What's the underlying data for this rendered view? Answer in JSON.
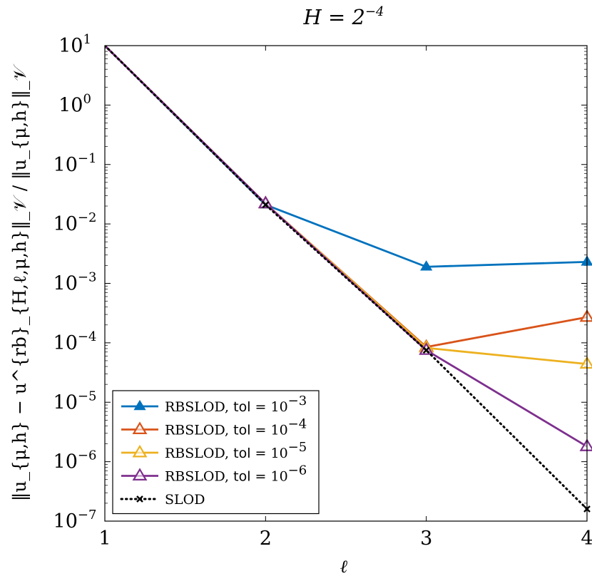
{
  "chart_data": {
    "type": "line",
    "title": "H = 2^{-4}",
    "title_base": "H = 2",
    "title_exp": "−4",
    "xlabel": "ℓ",
    "ylabel": "‖u_{μ,h} − u^{rb}_{H,ℓ,μ,h}‖_𝒱 / ‖u_{μ,h}‖_𝒱",
    "xlim": [
      1,
      4
    ],
    "ylim": [
      1e-07,
      10
    ],
    "yscale": "log",
    "grid": false,
    "legend_position": "bottom-left",
    "x_ticks": [
      "1",
      "2",
      "3",
      "4"
    ],
    "y_ticks": [
      {
        "base": "10",
        "exp": "−7",
        "value": 1e-07
      },
      {
        "base": "10",
        "exp": "−6",
        "value": 1e-06
      },
      {
        "base": "10",
        "exp": "−5",
        "value": 1e-05
      },
      {
        "base": "10",
        "exp": "−4",
        "value": 0.0001
      },
      {
        "base": "10",
        "exp": "−3",
        "value": 0.001
      },
      {
        "base": "10",
        "exp": "−2",
        "value": 0.01
      },
      {
        "base": "10",
        "exp": "−1",
        "value": 0.1
      },
      {
        "base": "10",
        "exp": "0",
        "value": 1
      },
      {
        "base": "10",
        "exp": "1",
        "value": 10
      }
    ],
    "series": [
      {
        "name": "RBSLOD, tol = 10^{-3}",
        "label_prefix": "RBSLOD, ",
        "label_tol": "tol",
        "label_eq": " = 10",
        "label_exp": "−3",
        "color": "#0072bd",
        "marker": "triangle-filled",
        "dash": "solid",
        "x": [
          1,
          2,
          3,
          4
        ],
        "y": [
          10,
          0.021,
          0.0019,
          0.0023
        ]
      },
      {
        "name": "RBSLOD, tol = 10^{-4}",
        "label_prefix": "RBSLOD, ",
        "label_tol": "tol",
        "label_eq": " = 10",
        "label_exp": "−4",
        "color": "#d95319",
        "marker": "triangle-open",
        "dash": "solid",
        "x": [
          1,
          2,
          3,
          4
        ],
        "y": [
          10,
          0.022,
          8.5e-05,
          0.00027
        ]
      },
      {
        "name": "RBSLOD, tol = 10^{-5}",
        "label_prefix": "RBSLOD, ",
        "label_tol": "tol",
        "label_eq": " = 10",
        "label_exp": "−5",
        "color": "#edb120",
        "marker": "triangle-open",
        "dash": "solid",
        "x": [
          1,
          2,
          3,
          4
        ],
        "y": [
          10,
          0.022,
          8.2e-05,
          4.4e-05
        ]
      },
      {
        "name": "RBSLOD, tol = 10^{-6}",
        "label_prefix": "RBSLOD, ",
        "label_tol": "tol",
        "label_eq": " = 10",
        "label_exp": "−6",
        "color": "#7e2f8e",
        "marker": "triangle-open",
        "dash": "solid",
        "x": [
          1,
          2,
          3,
          4
        ],
        "y": [
          10,
          0.022,
          7.5e-05,
          1.8e-06
        ]
      },
      {
        "name": "SLOD",
        "label_prefix": "SLOD",
        "label_tol": "",
        "label_eq": "",
        "label_exp": "",
        "color": "#000000",
        "marker": "cross",
        "dash": "dotted",
        "x": [
          1,
          2,
          3,
          4
        ],
        "y": [
          10,
          0.021,
          7.5e-05,
          1.6e-07
        ]
      }
    ]
  }
}
